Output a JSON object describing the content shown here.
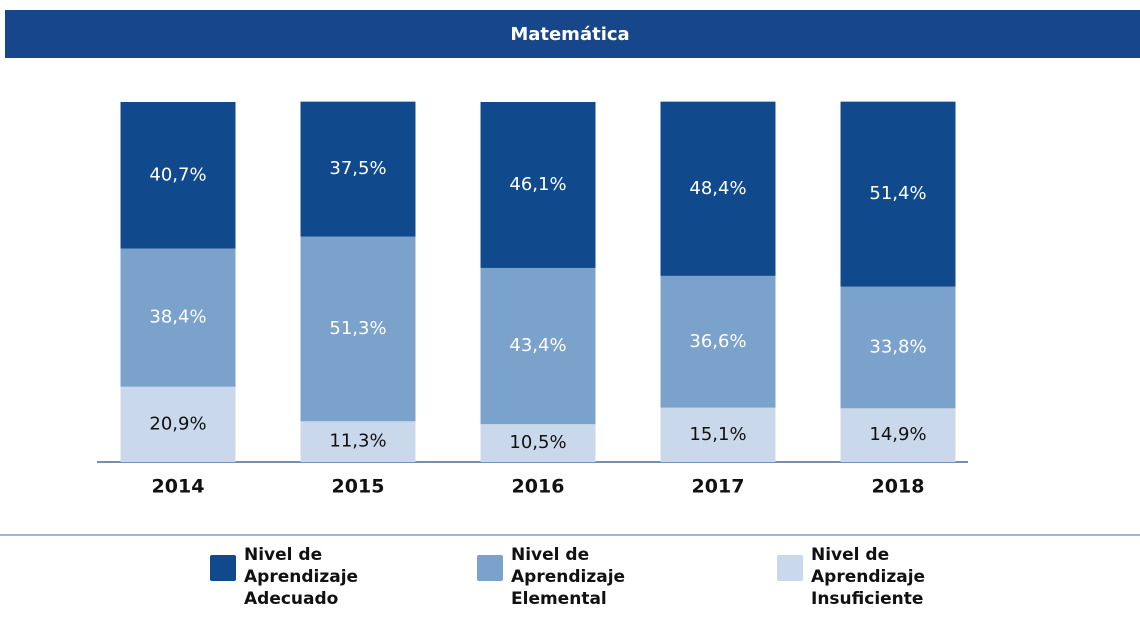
{
  "chart_data": {
    "type": "stacked_bar",
    "title": "Matemática",
    "categories": [
      "2014",
      "2015",
      "2016",
      "2017",
      "2018"
    ],
    "series": [
      {
        "name": "Nivel de Aprendizaje Adecuado",
        "color": "#104a8c",
        "values": [
          40.7,
          37.5,
          46.1,
          48.4,
          51.4
        ],
        "value_labels": [
          "40,7%",
          "37,5%",
          "46,1%",
          "48,4%",
          "51,4%"
        ]
      },
      {
        "name": "Nivel de Aprendizaje Elemental",
        "color": "#7ba2cb",
        "values": [
          38.4,
          51.3,
          43.4,
          36.6,
          33.8
        ],
        "value_labels": [
          "38,4%",
          "51,3%",
          "43,4%",
          "36,6%",
          "33,8%"
        ]
      },
      {
        "name": "Nivel de Aprendizaje Insuficiente",
        "color": "#c9d9eb",
        "values": [
          20.9,
          11.3,
          10.5,
          15.1,
          14.9
        ],
        "value_labels": [
          "20,9%",
          "11,3%",
          "10,5%",
          "15,1%",
          "14,9%"
        ]
      }
    ],
    "ylim": [
      0,
      100
    ]
  }
}
